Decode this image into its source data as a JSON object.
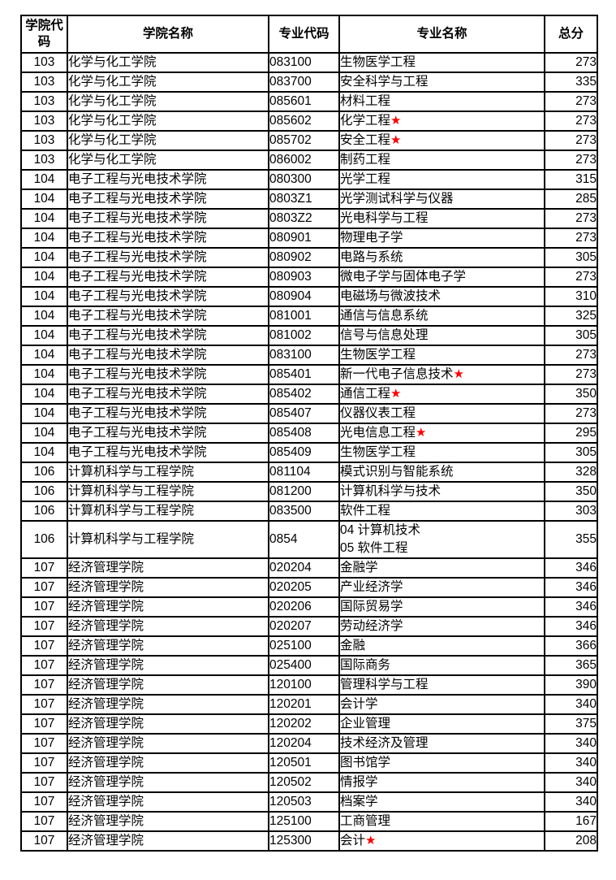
{
  "table": {
    "headers": [
      "学院代码",
      "学院名称",
      "专业代码",
      "专业名称",
      "总分"
    ],
    "star_glyph": "★",
    "star_color": "#FF0000",
    "text_color": "#000000",
    "border_color": "#000000",
    "rows": [
      {
        "college_code": "103",
        "college_name": "化学与化工学院",
        "major_code": "083100",
        "major_name": "生物医学工程",
        "star": false,
        "score": "273"
      },
      {
        "college_code": "103",
        "college_name": "化学与化工学院",
        "major_code": "083700",
        "major_name": "安全科学与工程",
        "star": false,
        "score": "335"
      },
      {
        "college_code": "103",
        "college_name": "化学与化工学院",
        "major_code": "085601",
        "major_name": "材料工程",
        "star": false,
        "score": "273"
      },
      {
        "college_code": "103",
        "college_name": "化学与化工学院",
        "major_code": "085602",
        "major_name": "化学工程",
        "star": true,
        "score": "273"
      },
      {
        "college_code": "103",
        "college_name": "化学与化工学院",
        "major_code": "085702",
        "major_name": "安全工程",
        "star": true,
        "score": "273"
      },
      {
        "college_code": "103",
        "college_name": "化学与化工学院",
        "major_code": "086002",
        "major_name": "制药工程",
        "star": false,
        "score": "273"
      },
      {
        "college_code": "104",
        "college_name": "电子工程与光电技术学院",
        "major_code": "080300",
        "major_name": "光学工程",
        "star": false,
        "score": "315"
      },
      {
        "college_code": "104",
        "college_name": "电子工程与光电技术学院",
        "major_code": "0803Z1",
        "major_name": "光学测试科学与仪器",
        "star": false,
        "score": "285"
      },
      {
        "college_code": "104",
        "college_name": "电子工程与光电技术学院",
        "major_code": "0803Z2",
        "major_name": "光电科学与工程",
        "star": false,
        "score": "273"
      },
      {
        "college_code": "104",
        "college_name": "电子工程与光电技术学院",
        "major_code": "080901",
        "major_name": "物理电子学",
        "star": false,
        "score": "273"
      },
      {
        "college_code": "104",
        "college_name": "电子工程与光电技术学院",
        "major_code": "080902",
        "major_name": "电路与系统",
        "star": false,
        "score": "305"
      },
      {
        "college_code": "104",
        "college_name": "电子工程与光电技术学院",
        "major_code": "080903",
        "major_name": "微电子学与固体电子学",
        "star": false,
        "score": "273"
      },
      {
        "college_code": "104",
        "college_name": "电子工程与光电技术学院",
        "major_code": "080904",
        "major_name": "电磁场与微波技术",
        "star": false,
        "score": "310"
      },
      {
        "college_code": "104",
        "college_name": "电子工程与光电技术学院",
        "major_code": "081001",
        "major_name": "通信与信息系统",
        "star": false,
        "score": "325"
      },
      {
        "college_code": "104",
        "college_name": "电子工程与光电技术学院",
        "major_code": "081002",
        "major_name": "信号与信息处理",
        "star": false,
        "score": "305"
      },
      {
        "college_code": "104",
        "college_name": "电子工程与光电技术学院",
        "major_code": "083100",
        "major_name": "生物医学工程",
        "star": false,
        "score": "273"
      },
      {
        "college_code": "104",
        "college_name": "电子工程与光电技术学院",
        "major_code": "085401",
        "major_name": "新一代电子信息技术",
        "star": true,
        "score": "273"
      },
      {
        "college_code": "104",
        "college_name": "电子工程与光电技术学院",
        "major_code": "085402",
        "major_name": "通信工程",
        "star": true,
        "score": "350"
      },
      {
        "college_code": "104",
        "college_name": "电子工程与光电技术学院",
        "major_code": "085407",
        "major_name": "仪器仪表工程",
        "star": false,
        "score": "273"
      },
      {
        "college_code": "104",
        "college_name": "电子工程与光电技术学院",
        "major_code": "085408",
        "major_name": "光电信息工程",
        "star": true,
        "score": "295"
      },
      {
        "college_code": "104",
        "college_name": "电子工程与光电技术学院",
        "major_code": "085409",
        "major_name": "生物医学工程",
        "star": false,
        "score": "305"
      },
      {
        "college_code": "106",
        "college_name": "计算机科学与工程学院",
        "major_code": "081104",
        "major_name": "模式识别与智能系统",
        "star": false,
        "score": "328"
      },
      {
        "college_code": "106",
        "college_name": "计算机科学与工程学院",
        "major_code": "081200",
        "major_name": "计算机科学与技术",
        "star": false,
        "score": "350"
      },
      {
        "college_code": "106",
        "college_name": "计算机科学与工程学院",
        "major_code": "083500",
        "major_name": "软件工程",
        "star": false,
        "score": "303"
      },
      {
        "college_code": "106",
        "college_name": "计算机科学与工程学院",
        "major_code": "0854",
        "major_name": [
          "04 计算机技术",
          "05 软件工程"
        ],
        "star": false,
        "score": "355"
      },
      {
        "college_code": "107",
        "college_name": "经济管理学院",
        "major_code": "020204",
        "major_name": "金融学",
        "star": false,
        "score": "346"
      },
      {
        "college_code": "107",
        "college_name": "经济管理学院",
        "major_code": "020205",
        "major_name": "产业经济学",
        "star": false,
        "score": "346"
      },
      {
        "college_code": "107",
        "college_name": "经济管理学院",
        "major_code": "020206",
        "major_name": "国际贸易学",
        "star": false,
        "score": "346"
      },
      {
        "college_code": "107",
        "college_name": "经济管理学院",
        "major_code": "020207",
        "major_name": "劳动经济学",
        "star": false,
        "score": "346"
      },
      {
        "college_code": "107",
        "college_name": "经济管理学院",
        "major_code": "025100",
        "major_name": "金融",
        "star": false,
        "score": "366"
      },
      {
        "college_code": "107",
        "college_name": "经济管理学院",
        "major_code": "025400",
        "major_name": "国际商务",
        "star": false,
        "score": "365"
      },
      {
        "college_code": "107",
        "college_name": "经济管理学院",
        "major_code": "120100",
        "major_name": "管理科学与工程",
        "star": false,
        "score": "390"
      },
      {
        "college_code": "107",
        "college_name": "经济管理学院",
        "major_code": "120201",
        "major_name": "会计学",
        "star": false,
        "score": "340"
      },
      {
        "college_code": "107",
        "college_name": "经济管理学院",
        "major_code": "120202",
        "major_name": "企业管理",
        "star": false,
        "score": "375"
      },
      {
        "college_code": "107",
        "college_name": "经济管理学院",
        "major_code": "120204",
        "major_name": "技术经济及管理",
        "star": false,
        "score": "340"
      },
      {
        "college_code": "107",
        "college_name": "经济管理学院",
        "major_code": "120501",
        "major_name": "图书馆学",
        "star": false,
        "score": "340"
      },
      {
        "college_code": "107",
        "college_name": "经济管理学院",
        "major_code": "120502",
        "major_name": "情报学",
        "star": false,
        "score": "340"
      },
      {
        "college_code": "107",
        "college_name": "经济管理学院",
        "major_code": "120503",
        "major_name": "档案学",
        "star": false,
        "score": "340"
      },
      {
        "college_code": "107",
        "college_name": "经济管理学院",
        "major_code": "125100",
        "major_name": "工商管理",
        "star": false,
        "score": "167"
      },
      {
        "college_code": "107",
        "college_name": "经济管理学院",
        "major_code": "125300",
        "major_name": "会计",
        "star": true,
        "score": "208"
      }
    ]
  }
}
